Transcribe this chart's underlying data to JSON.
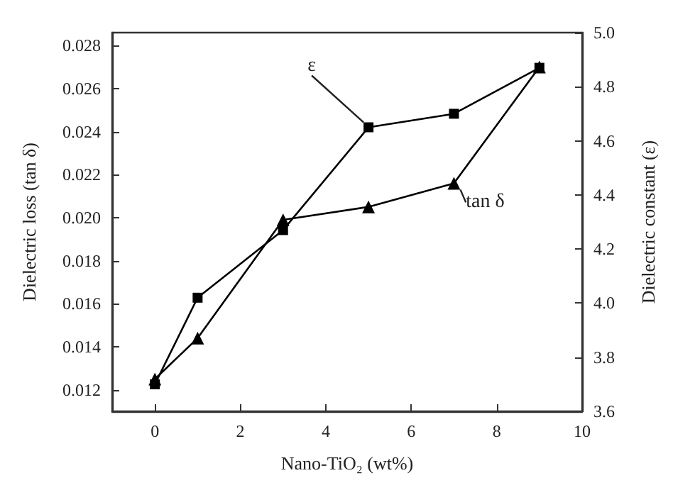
{
  "chart_data": {
    "type": "line",
    "xlabel": "Nano-TiO₂ (wt%)",
    "ylabel": "Dielectric loss (tan δ)",
    "y2label": "Dielectric constant (ε)",
    "x": [
      0,
      1,
      3,
      5,
      7,
      9
    ],
    "series": [
      {
        "name": "ε",
        "color": "#000000",
        "axis": "y2",
        "marker": "square",
        "values": [
          3.7,
          4.02,
          4.27,
          4.65,
          4.7,
          4.87
        ]
      },
      {
        "name": "tan δ",
        "color": "#000000",
        "marker": "triangle",
        "values": [
          0.0125,
          0.0144,
          0.0199,
          0.0205,
          0.0216,
          0.027
        ]
      }
    ],
    "xlim": [
      -1,
      10
    ],
    "xticks": [
      0,
      2,
      4,
      6,
      8,
      10
    ],
    "ylim": [
      0.011,
      0.0286
    ],
    "yticks": [
      0.012,
      0.014,
      0.016,
      0.018,
      {
        "value": 0.02,
        "label": "0.020"
      },
      0.022,
      0.024,
      0.026,
      0.028
    ],
    "y2lim": [
      3.6,
      5.0
    ],
    "y2ticks": [
      3.6,
      3.8,
      {
        "value": 4,
        "label": "4.0"
      },
      4.2,
      4.4,
      4.6,
      4.8,
      {
        "value": 5,
        "label": "5.0"
      }
    ],
    "grid": false,
    "legend": false,
    "line_style": "solid"
  }
}
